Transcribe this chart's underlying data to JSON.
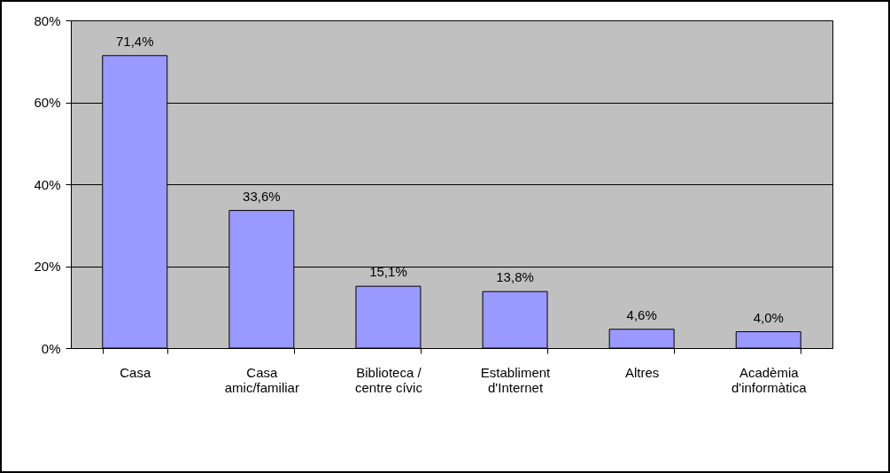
{
  "chart_data": {
    "type": "bar",
    "categories": [
      "Casa",
      "Casa amic/familiar",
      "Biblioteca / centre cívic",
      "Establiment d'Internet",
      "Altres",
      "Acadèmia d'informàtica"
    ],
    "values": [
      71.4,
      33.6,
      15.1,
      13.8,
      4.6,
      4.0
    ],
    "value_labels": [
      "71,4%",
      "33,6%",
      "15,1%",
      "13,8%",
      "4,6%",
      "4,0%"
    ],
    "color": "#9999ff",
    "ylim": [
      0,
      80
    ],
    "yticks": [
      {
        "value": 0,
        "label": "0%"
      },
      {
        "value": 20,
        "label": "20%"
      },
      {
        "value": 40,
        "label": "40%"
      },
      {
        "value": 60,
        "label": "60%"
      },
      {
        "value": 80,
        "label": "80%"
      }
    ],
    "grid": "y"
  }
}
